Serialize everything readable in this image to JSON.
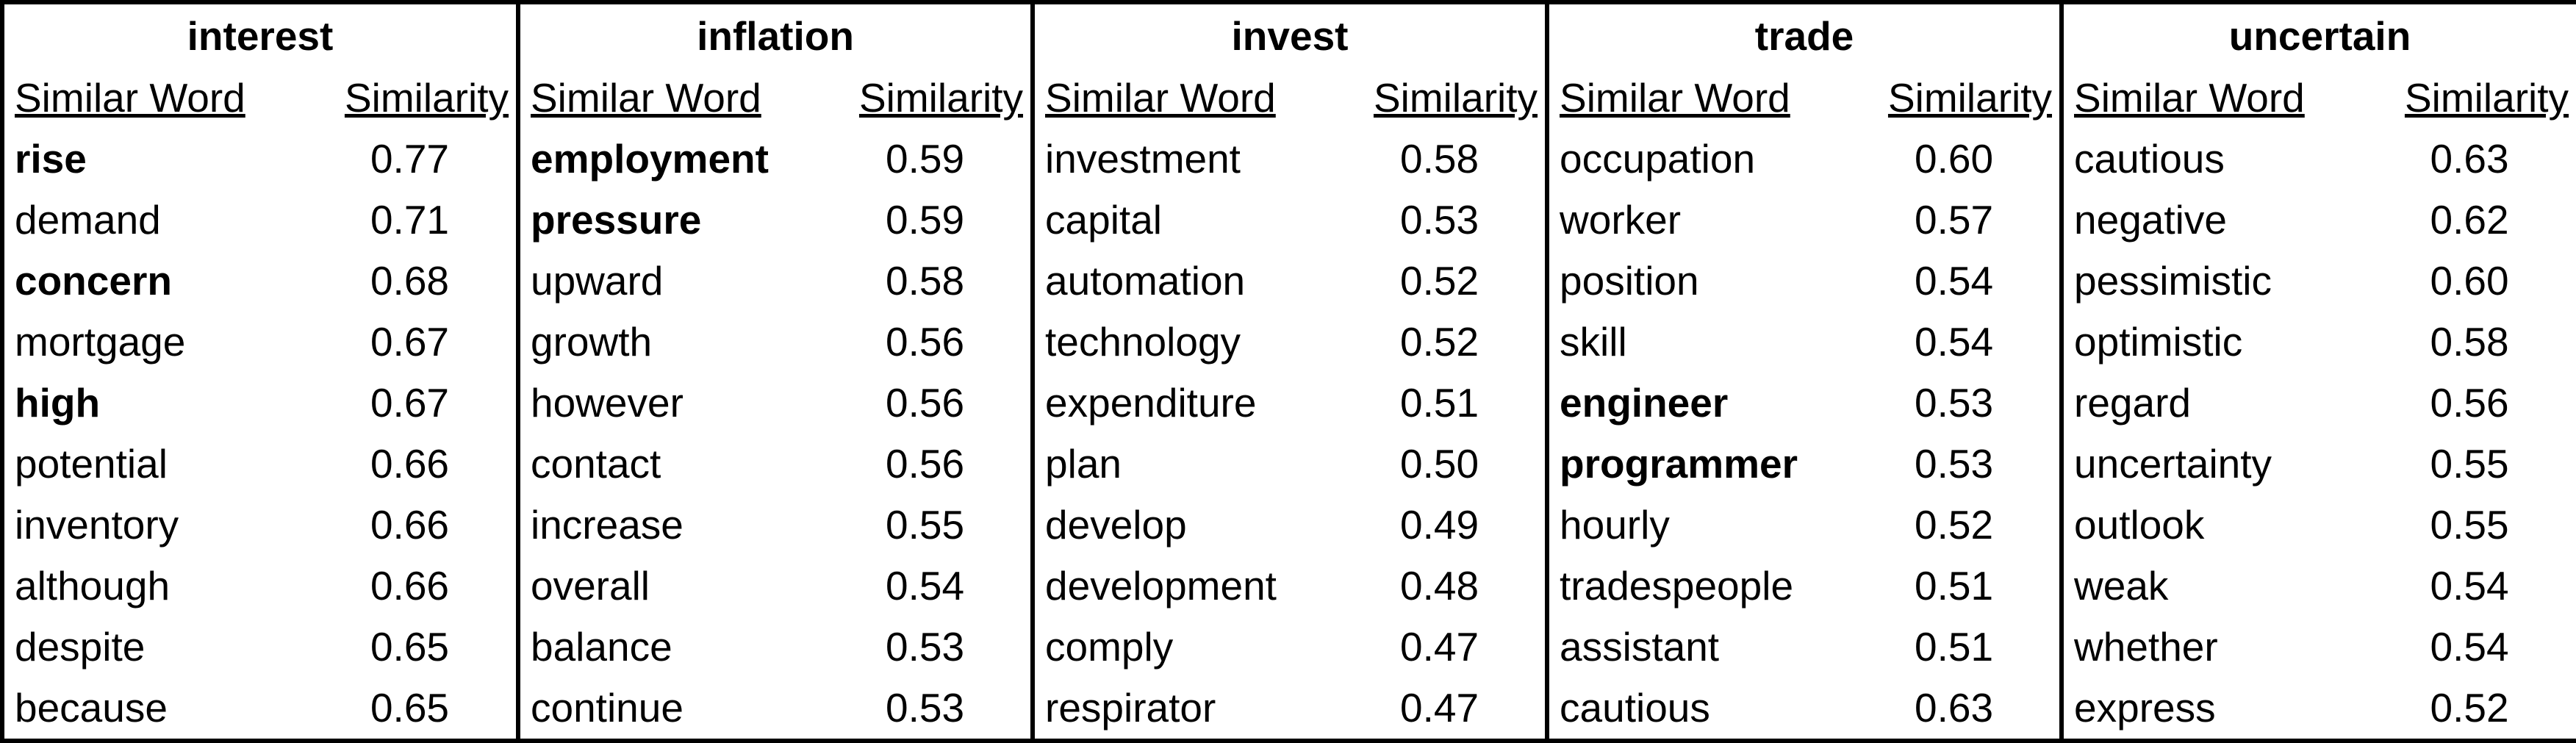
{
  "table": {
    "sub_word": "Similar Word",
    "sub_sim": "Similarity",
    "groups": [
      {
        "title": "interest",
        "rows": [
          {
            "word": "rise",
            "sim": "0.77",
            "bold": true
          },
          {
            "word": "demand",
            "sim": "0.71",
            "bold": false
          },
          {
            "word": "concern",
            "sim": "0.68",
            "bold": true
          },
          {
            "word": "mortgage",
            "sim": "0.67",
            "bold": false
          },
          {
            "word": "high",
            "sim": "0.67",
            "bold": true
          },
          {
            "word": "potential",
            "sim": "0.66",
            "bold": false
          },
          {
            "word": "inventory",
            "sim": "0.66",
            "bold": false
          },
          {
            "word": "although",
            "sim": "0.66",
            "bold": false
          },
          {
            "word": "despite",
            "sim": "0.65",
            "bold": false
          },
          {
            "word": "because",
            "sim": "0.65",
            "bold": false
          }
        ]
      },
      {
        "title": "inflation",
        "rows": [
          {
            "word": "employment",
            "sim": "0.59",
            "bold": true
          },
          {
            "word": "pressure",
            "sim": "0.59",
            "bold": true
          },
          {
            "word": "upward",
            "sim": "0.58",
            "bold": false
          },
          {
            "word": "growth",
            "sim": "0.56",
            "bold": false
          },
          {
            "word": "however",
            "sim": "0.56",
            "bold": false
          },
          {
            "word": "contact",
            "sim": "0.56",
            "bold": false
          },
          {
            "word": "increase",
            "sim": "0.55",
            "bold": false
          },
          {
            "word": "overall",
            "sim": "0.54",
            "bold": false
          },
          {
            "word": "balance",
            "sim": "0.53",
            "bold": false
          },
          {
            "word": "continue",
            "sim": "0.53",
            "bold": false
          }
        ]
      },
      {
        "title": "invest",
        "rows": [
          {
            "word": "investment",
            "sim": "0.58",
            "bold": false
          },
          {
            "word": "capital",
            "sim": "0.53",
            "bold": false
          },
          {
            "word": "automation",
            "sim": "0.52",
            "bold": false
          },
          {
            "word": "technology",
            "sim": "0.52",
            "bold": false
          },
          {
            "word": "expenditure",
            "sim": "0.51",
            "bold": false
          },
          {
            "word": "plan",
            "sim": "0.50",
            "bold": false
          },
          {
            "word": "develop",
            "sim": "0.49",
            "bold": false
          },
          {
            "word": "development",
            "sim": "0.48",
            "bold": false
          },
          {
            "word": "comply",
            "sim": "0.47",
            "bold": false
          },
          {
            "word": "respirator",
            "sim": "0.47",
            "bold": false
          }
        ]
      },
      {
        "title": "trade",
        "rows": [
          {
            "word": "occupation",
            "sim": "0.60",
            "bold": false
          },
          {
            "word": "worker",
            "sim": "0.57",
            "bold": false
          },
          {
            "word": "position",
            "sim": "0.54",
            "bold": false
          },
          {
            "word": "skill",
            "sim": "0.54",
            "bold": false
          },
          {
            "word": "engineer",
            "sim": "0.53",
            "bold": true
          },
          {
            "word": "programmer",
            "sim": "0.53",
            "bold": true
          },
          {
            "word": "hourly",
            "sim": "0.52",
            "bold": false
          },
          {
            "word": "tradespeople",
            "sim": "0.51",
            "bold": false
          },
          {
            "word": "assistant",
            "sim": "0.51",
            "bold": false
          },
          {
            "word": "cautious",
            "sim": "0.63",
            "bold": false
          }
        ]
      },
      {
        "title": "uncertain",
        "rows": [
          {
            "word": "cautious",
            "sim": "0.63",
            "bold": false
          },
          {
            "word": "negative",
            "sim": "0.62",
            "bold": false
          },
          {
            "word": "pessimistic",
            "sim": "0.60",
            "bold": false
          },
          {
            "word": "optimistic",
            "sim": "0.58",
            "bold": false
          },
          {
            "word": "regard",
            "sim": "0.56",
            "bold": false
          },
          {
            "word": "uncertainty",
            "sim": "0.55",
            "bold": false
          },
          {
            "word": "outlook",
            "sim": "0.55",
            "bold": false
          },
          {
            "word": "weak",
            "sim": "0.54",
            "bold": false
          },
          {
            "word": "whether",
            "sim": "0.54",
            "bold": false
          },
          {
            "word": "express",
            "sim": "0.52",
            "bold": false
          }
        ]
      }
    ]
  }
}
